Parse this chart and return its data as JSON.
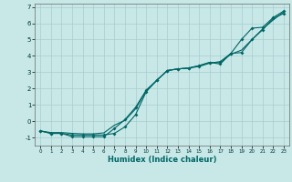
{
  "xlabel": "Humidex (Indice chaleur)",
  "background_color": "#c8e8e8",
  "grid_color": "#a8cccc",
  "line_color": "#006666",
  "xlim": [
    -0.5,
    23.5
  ],
  "ylim": [
    -1.5,
    7.2
  ],
  "xticks": [
    0,
    1,
    2,
    3,
    4,
    5,
    6,
    7,
    8,
    9,
    10,
    11,
    12,
    13,
    14,
    15,
    16,
    17,
    18,
    19,
    20,
    21,
    22,
    23
  ],
  "yticks": [
    -1,
    0,
    1,
    2,
    3,
    4,
    5,
    6,
    7
  ],
  "curve1_x": [
    0,
    1,
    2,
    3,
    4,
    5,
    6,
    7,
    8,
    9,
    10,
    11,
    12,
    13,
    14,
    15,
    16,
    17,
    18,
    19,
    20,
    21,
    22,
    23
  ],
  "curve1_y": [
    -0.6,
    -0.75,
    -0.75,
    -0.85,
    -0.85,
    -0.85,
    -0.85,
    -0.75,
    -0.35,
    0.4,
    1.8,
    2.5,
    3.1,
    3.2,
    3.25,
    3.35,
    3.55,
    3.65,
    4.15,
    4.2,
    5.0,
    5.6,
    6.3,
    6.6
  ],
  "curve2_x": [
    0,
    1,
    2,
    3,
    4,
    5,
    6,
    7,
    8,
    9,
    10,
    11,
    12,
    13,
    14,
    15,
    16,
    17,
    18,
    19,
    20,
    21,
    22,
    23
  ],
  "curve2_y": [
    -0.6,
    -0.75,
    -0.75,
    -0.95,
    -0.95,
    -0.95,
    -0.95,
    -0.45,
    0.1,
    0.85,
    1.9,
    2.5,
    3.1,
    3.2,
    3.25,
    3.4,
    3.6,
    3.5,
    4.15,
    5.0,
    5.7,
    5.75,
    6.35,
    6.75
  ],
  "curve3_x": [
    0,
    1,
    2,
    3,
    4,
    5,
    6,
    7,
    8,
    9,
    10,
    11,
    12,
    13,
    14,
    15,
    16,
    17,
    18,
    19,
    20,
    21,
    22,
    23
  ],
  "curve3_y": [
    -0.6,
    -0.7,
    -0.7,
    -0.75,
    -0.78,
    -0.78,
    -0.72,
    -0.25,
    0.05,
    0.75,
    1.85,
    2.5,
    3.1,
    3.2,
    3.25,
    3.4,
    3.6,
    3.58,
    4.1,
    4.35,
    5.0,
    5.65,
    6.2,
    6.7
  ]
}
